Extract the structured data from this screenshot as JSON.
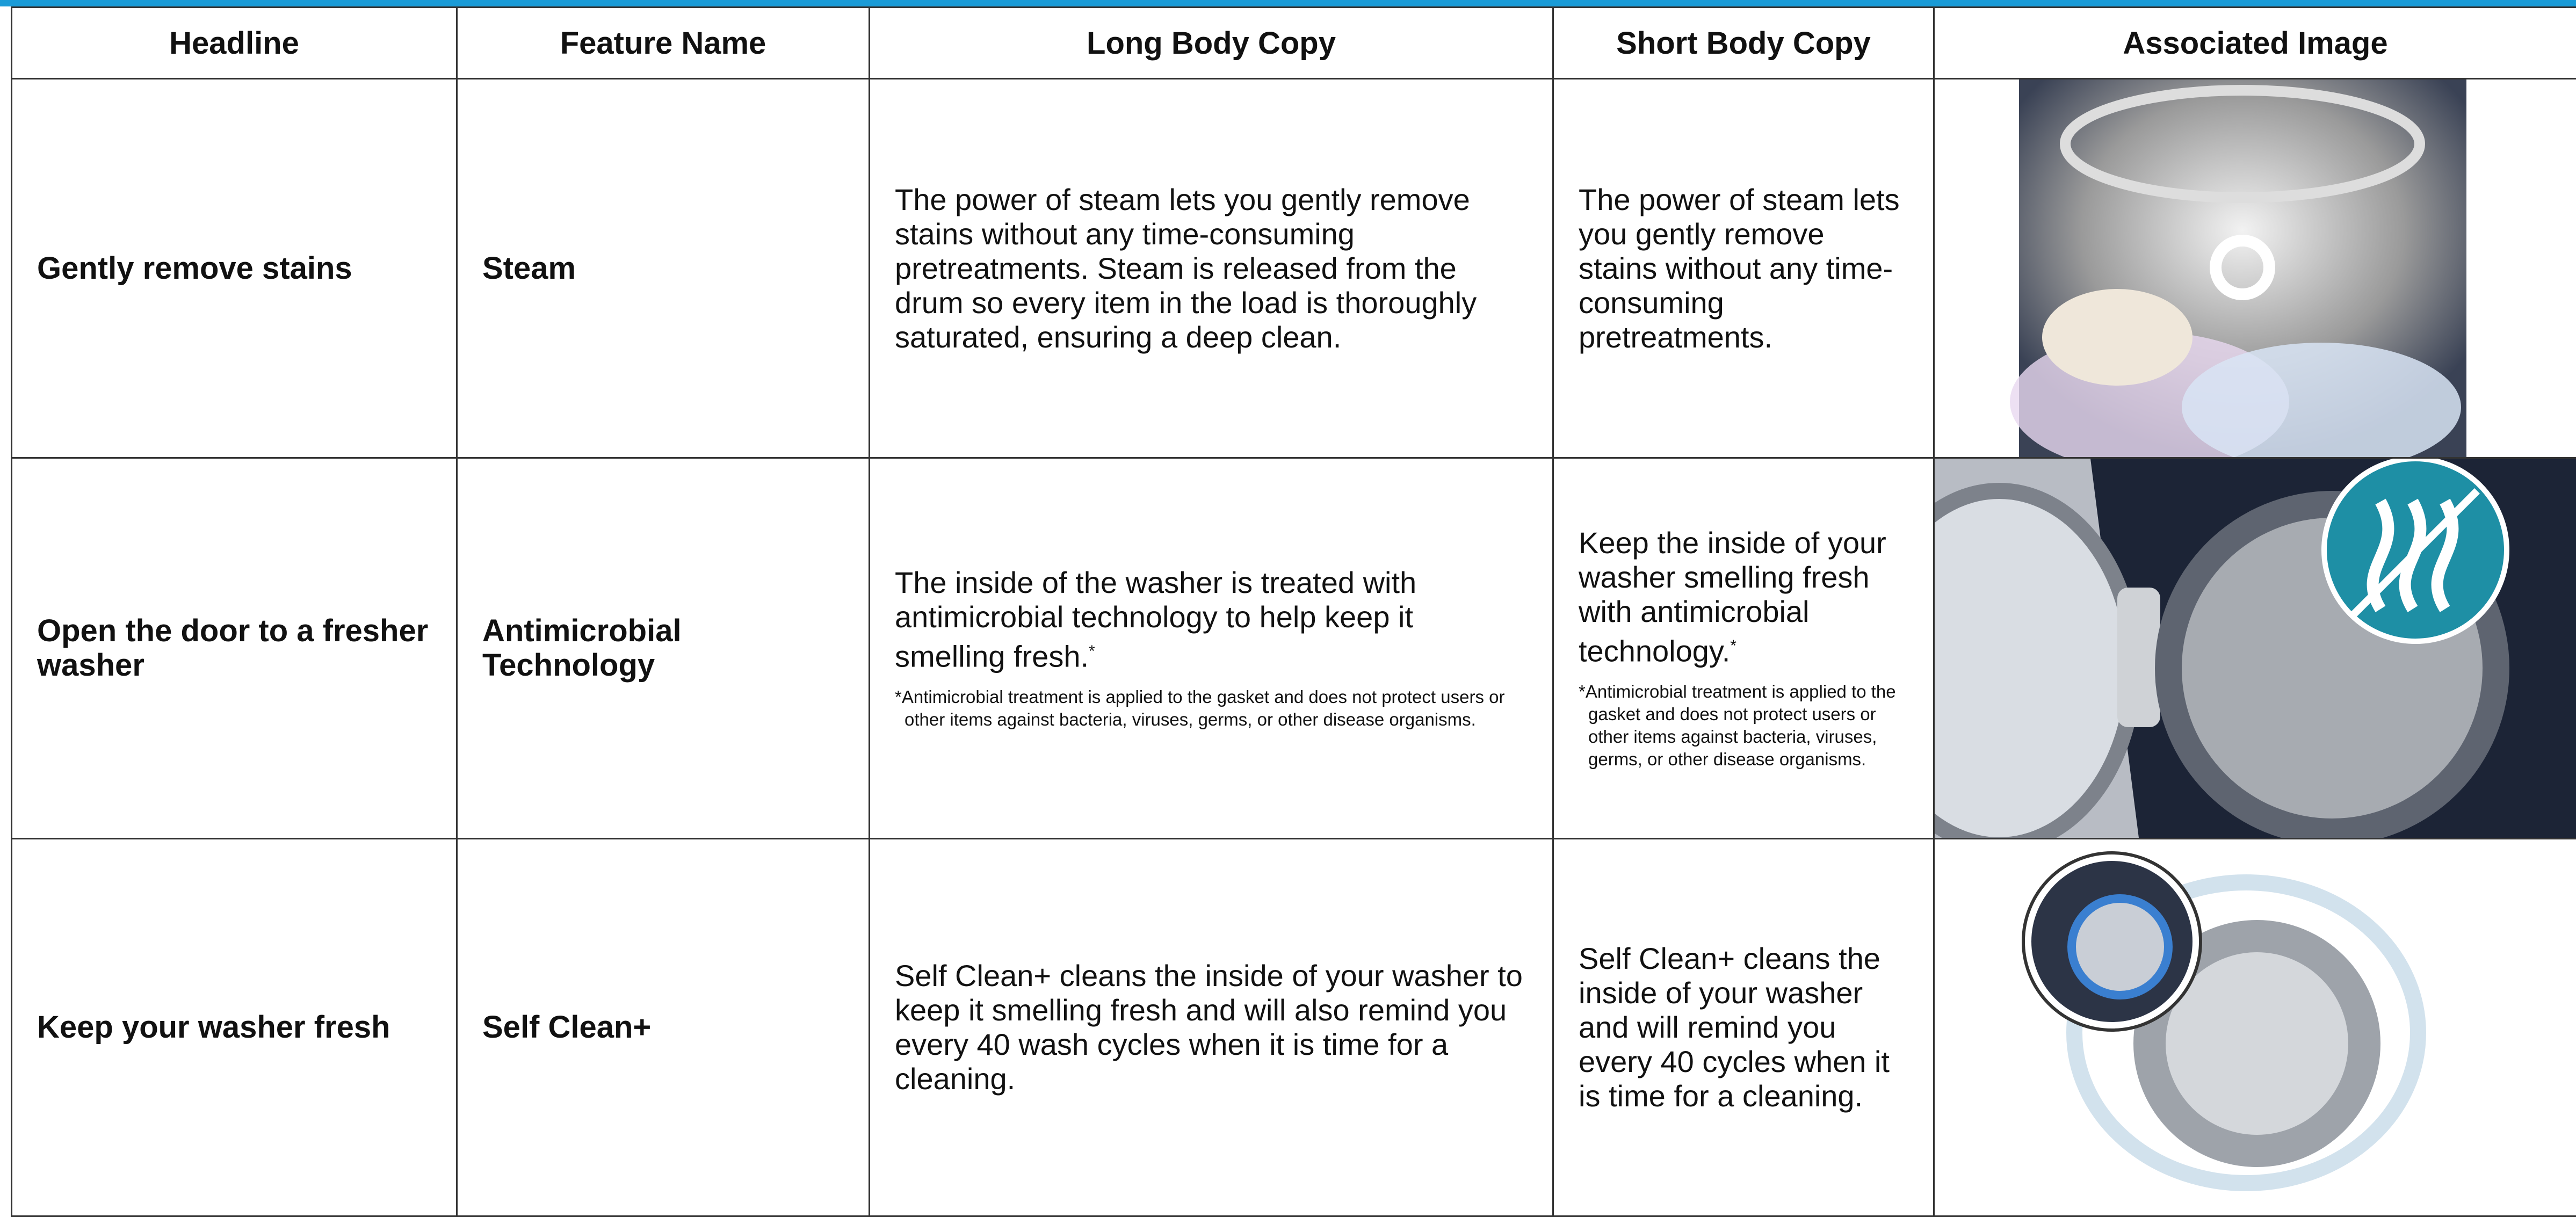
{
  "table": {
    "columns": [
      "Headline",
      "Feature Name",
      "Long Body Copy",
      "Short Body Copy",
      "Associated Image"
    ],
    "rows": [
      {
        "headline": "Gently remove stains",
        "feature_name": "Steam",
        "long_body": "The power of steam lets you gently remove stains without any time-consuming pretreatments. Steam is released from the drum so every item in the load is thoroughly saturated, ensuring a deep clean.",
        "short_body": "The power of steam lets you gently remove stains without any time-consuming pretreatments."
      },
      {
        "headline": "Open the door to a fresher washer",
        "feature_name": "Antimicrobial Technology",
        "long_body": "The inside of the washer is treated with antimicrobial technology to help keep it smelling fresh.",
        "footnote_marker": "*",
        "long_note": "*Antimicrobial treatment is applied to the gasket and does not protect users or other items against bacteria, viruses, germs, or other disease organisms.",
        "short_body": "Keep the inside of your washer smelling fresh with antimicrobial technology.",
        "short_note": "*Antimicrobial treatment is applied to the gasket and does not protect users or other items against bacteria, viruses, germs, or other disease organisms."
      },
      {
        "headline": "Keep your washer fresh",
        "feature_name": "Self Clean+",
        "long_body": "Self Clean+ cleans the inside of your washer to keep it smelling fresh and will also remind you every 40 wash cycles when it is time for a cleaning.",
        "short_body": "Self Clean+ cleans the inside of your washer and will remind you every 40 cycles when it is time for a cleaning."
      }
    ]
  }
}
